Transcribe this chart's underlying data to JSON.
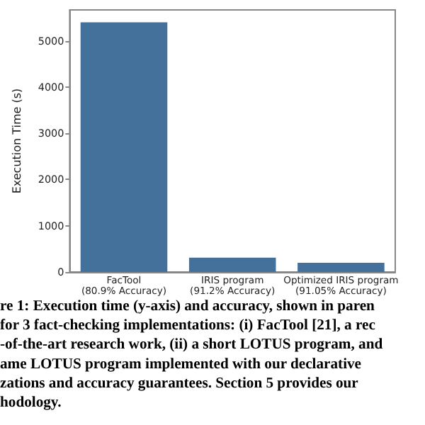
{
  "chart_data": {
    "type": "bar",
    "ylabel": "Execution Time (s)",
    "categories": [
      "FacTool\n(80.9% Accuracy)",
      "IRIS program\n(91.2% Accuracy)",
      "Optimized IRIS program\n(91.05% Accuracy)"
    ],
    "values": [
      5400,
      310,
      200
    ],
    "color": "#44719b",
    "ylim": [
      0,
      5670
    ],
    "yticks": [
      0,
      1000,
      2000,
      3000,
      4000,
      5000
    ],
    "grid": false,
    "annotations": [
      "re 1: Execution time (y-axis) and accuracy, shown in paren",
      "for 3 fact-checking implementations: (i) FacTool [21], a rec",
      "-of-the-art research work, (ii) a short LOTUS program, and",
      "ame LOTUS program implemented with our declarative",
      "zations and accuracy guarantees. Section 5 provides our",
      "hodology."
    ]
  }
}
